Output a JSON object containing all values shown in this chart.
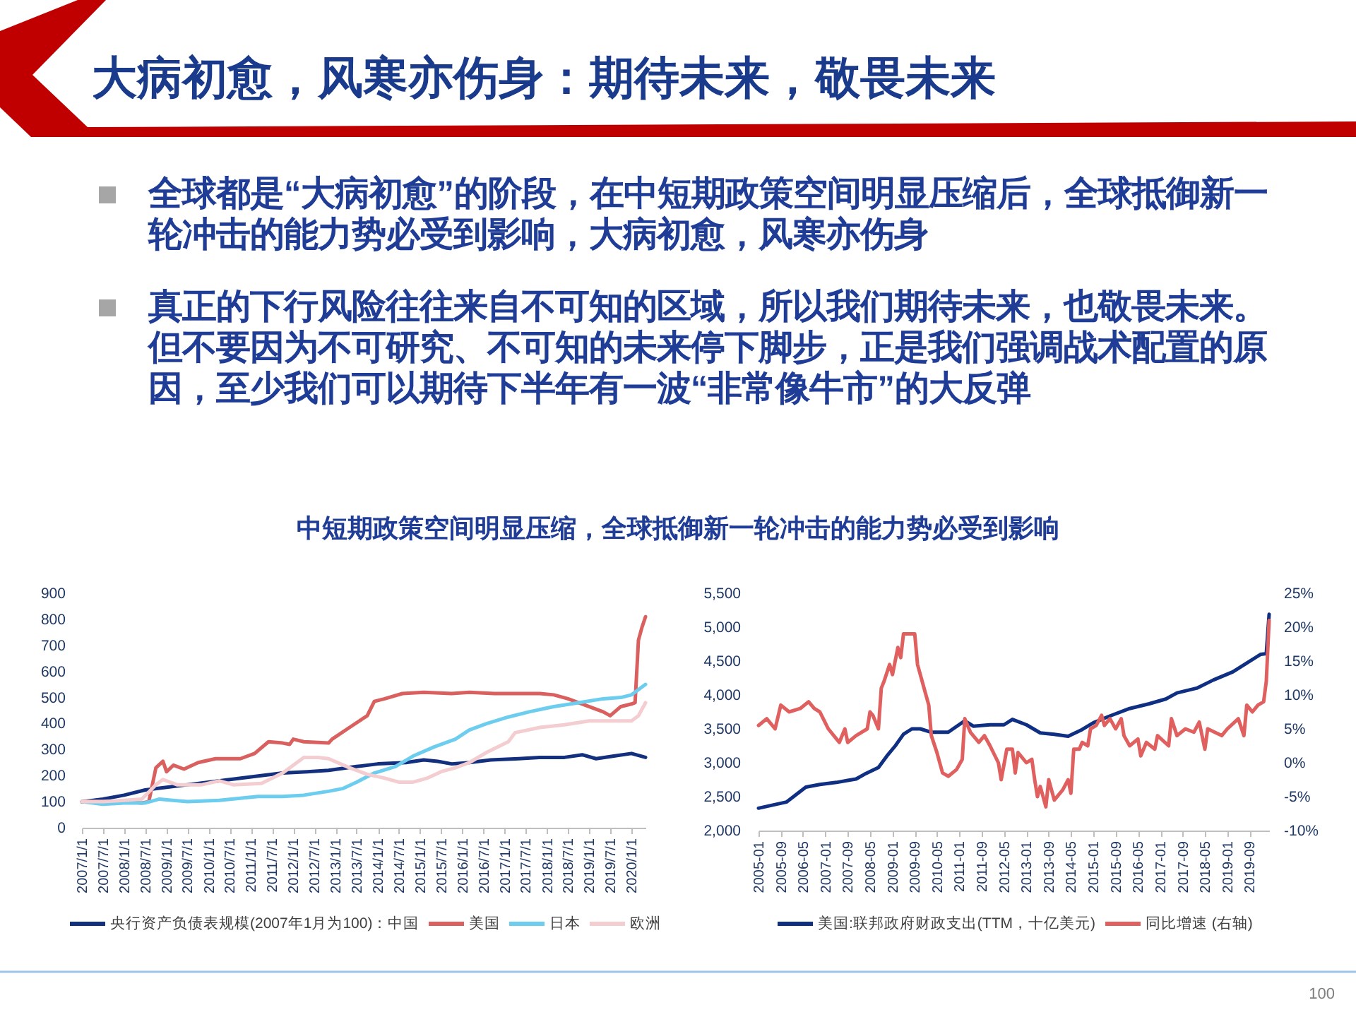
{
  "chart_data": [
    {
      "type": "other",
      "title": "大病初愈，风寒亦伤身：期待未来，敬畏未来",
      "annotations": [
        "全球都是“大病初愈”的阶段，在中短期政策空间明显压缩后，全球抵御新一轮冲击的能力势必受到影响，大病初愈，风寒亦伤身",
        "真正的下行风险往往来自不可知的区域，所以我们期待未来，也敬畏未来。但不要因为不可研究、不可知的未来停下脚步，正是我们强调战术配置的原因，至少我们可以期待下半年有一波“非常像牛市”的大反弹",
        "中短期政策空间明显压缩，全球抵御新一轮冲击的能力势必受到影响"
      ]
    },
    {
      "type": "line",
      "legend": "bottom",
      "xlim": [
        "2007-01-01",
        "2020-05-01"
      ],
      "xticks": [
        {
          "value": "2007-01-01",
          "label": "2007/1/1"
        },
        {
          "value": "2007-07-01",
          "label": "2007/7/1"
        },
        {
          "value": "2008-01-01",
          "label": "2008/1/1"
        },
        {
          "value": "2008-07-01",
          "label": "2008/7/1"
        },
        {
          "value": "2009-01-01",
          "label": "2009/1/1"
        },
        {
          "value": "2009-07-01",
          "label": "2009/7/1"
        },
        {
          "value": "2010-01-01",
          "label": "2010/1/1"
        },
        {
          "value": "2010-07-01",
          "label": "2010/7/1"
        },
        {
          "value": "2011-01-01",
          "label": "2011/1/1"
        },
        {
          "value": "2011-07-01",
          "label": "2011/7/1"
        },
        {
          "value": "2012-01-01",
          "label": "2012/1/1"
        },
        {
          "value": "2012-07-01",
          "label": "2012/7/1"
        },
        {
          "value": "2013-01-01",
          "label": "2013/1/1"
        },
        {
          "value": "2013-07-01",
          "label": "2013/7/1"
        },
        {
          "value": "2014-01-01",
          "label": "2014/1/1"
        },
        {
          "value": "2014-07-01",
          "label": "2014/7/1"
        },
        {
          "value": "2015-01-01",
          "label": "2015/1/1"
        },
        {
          "value": "2015-07-01",
          "label": "2015/7/1"
        },
        {
          "value": "2016-01-01",
          "label": "2016/1/1"
        },
        {
          "value": "2016-07-01",
          "label": "2016/7/1"
        },
        {
          "value": "2017-01-01",
          "label": "2017/1/1"
        },
        {
          "value": "2017-07-01",
          "label": "2017/7/1"
        },
        {
          "value": "2018-01-01",
          "label": "2018/1/1"
        },
        {
          "value": "2018-07-01",
          "label": "2018/7/1"
        },
        {
          "value": "2019-01-01",
          "label": "2019/1/1"
        },
        {
          "value": "2019-07-01",
          "label": "2019/7/1"
        },
        {
          "value": "2020-01-01",
          "label": "2020/1/1"
        }
      ],
      "ylim": [
        0,
        900
      ],
      "yticks": [
        0,
        100,
        200,
        300,
        400,
        500,
        600,
        700,
        800,
        900
      ],
      "series": [
        {
          "name": "央行资产负债表规模(2007年1月为100)：中国",
          "color": "#13307f",
          "x": [
            "2007-01",
            "2007-07",
            "2008-01",
            "2008-07",
            "2009-07",
            "2010-07",
            "2011-01",
            "2011-10",
            "2012-05",
            "2012-11",
            "2013-07",
            "2014-01",
            "2014-09",
            "2015-02",
            "2015-06",
            "2015-10",
            "2016-03",
            "2016-09",
            "2017-05",
            "2017-11",
            "2018-06",
            "2018-11",
            "2019-03",
            "2019-08",
            "2020-01",
            "2020-05"
          ],
          "values": [
            100,
            110,
            125,
            145,
            165,
            185,
            195,
            210,
            215,
            220,
            235,
            245,
            250,
            260,
            255,
            245,
            250,
            260,
            265,
            270,
            270,
            280,
            265,
            275,
            285,
            270
          ]
        },
        {
          "name": "美国",
          "color": "#d9605e",
          "x": [
            "2007-01",
            "2007-07",
            "2008-01",
            "2008-06",
            "2008-08",
            "2008-10",
            "2008-12",
            "2009-01",
            "2009-03",
            "2009-06",
            "2009-10",
            "2010-03",
            "2010-10",
            "2011-02",
            "2011-06",
            "2011-10",
            "2011-12",
            "2012-01",
            "2012-04",
            "2012-11",
            "2012-12",
            "2013-05",
            "2013-10",
            "2013-12",
            "2014-03",
            "2014-08",
            "2015-02",
            "2015-10",
            "2016-03",
            "2016-10",
            "2017-04",
            "2017-11",
            "2018-03",
            "2018-07",
            "2018-11",
            "2019-05",
            "2019-07",
            "2019-10",
            "2020-01",
            "2020-02",
            "2020-03",
            "2020-04",
            "2020-05"
          ],
          "values": [
            100,
            100,
            100,
            95,
            100,
            230,
            255,
            215,
            240,
            225,
            250,
            265,
            265,
            285,
            330,
            325,
            320,
            340,
            330,
            325,
            340,
            385,
            430,
            485,
            495,
            515,
            520,
            515,
            520,
            515,
            515,
            515,
            510,
            495,
            475,
            445,
            430,
            465,
            475,
            480,
            720,
            770,
            810
          ]
        },
        {
          "name": "日本",
          "color": "#6dcdee",
          "x": [
            "2007-01",
            "2007-07",
            "2008-01",
            "2008-07",
            "2008-11",
            "2009-07",
            "2010-04",
            "2011-03",
            "2011-10",
            "2012-04",
            "2012-11",
            "2013-03",
            "2013-07",
            "2013-12",
            "2014-06",
            "2014-11",
            "2015-05",
            "2015-11",
            "2016-03",
            "2016-08",
            "2017-02",
            "2017-08",
            "2018-03",
            "2018-10",
            "2019-05",
            "2019-10",
            "2020-01",
            "2020-05"
          ],
          "values": [
            100,
            90,
            95,
            95,
            110,
            100,
            105,
            120,
            120,
            125,
            140,
            150,
            175,
            210,
            235,
            275,
            310,
            340,
            375,
            400,
            425,
            445,
            465,
            480,
            495,
            500,
            510,
            550
          ]
        },
        {
          "name": "欧洲",
          "color": "#f4cdd0",
          "x": [
            "2007-01",
            "2007-07",
            "2008-01",
            "2008-06",
            "2008-10",
            "2008-12",
            "2009-04",
            "2009-11",
            "2010-04",
            "2010-08",
            "2011-04",
            "2011-10",
            "2012-01",
            "2012-04",
            "2012-08",
            "2012-11",
            "2013-05",
            "2013-10",
            "2014-03",
            "2014-07",
            "2014-11",
            "2015-03",
            "2015-07",
            "2015-11",
            "2016-03",
            "2016-08",
            "2017-02",
            "2017-04",
            "2017-11",
            "2018-06",
            "2019-01",
            "2019-07",
            "2020-01",
            "2020-03",
            "2020-05"
          ],
          "values": [
            100,
            100,
            105,
            110,
            165,
            185,
            165,
            165,
            180,
            165,
            170,
            210,
            240,
            270,
            270,
            265,
            230,
            205,
            190,
            175,
            175,
            190,
            215,
            230,
            250,
            290,
            330,
            365,
            385,
            395,
            410,
            410,
            410,
            430,
            480
          ]
        }
      ]
    },
    {
      "type": "line",
      "legend": "bottom",
      "annotations": [
        "100"
      ],
      "xlim": [
        "2005-01",
        "2020-04"
      ],
      "xticks": [
        "2005-01",
        "2005-09",
        "2006-05",
        "2007-01",
        "2007-09",
        "2008-05",
        "2009-01",
        "2009-09",
        "2010-05",
        "2011-01",
        "2011-09",
        "2012-05",
        "2013-01",
        "2013-09",
        "2014-05",
        "2015-01",
        "2015-09",
        "2016-05",
        "2017-01",
        "2017-09",
        "2018-05",
        "2019-01",
        "2019-09"
      ],
      "ylim": [
        2000,
        5500
      ],
      "yticks": [
        {
          "value": 2000,
          "label": "2,000"
        },
        {
          "value": 2500,
          "label": "2,500"
        },
        {
          "value": 3000,
          "label": "3,000"
        },
        {
          "value": 3500,
          "label": "3,500"
        },
        {
          "value": 4000,
          "label": "4,000"
        },
        {
          "value": 4500,
          "label": "4,500"
        },
        {
          "value": 5000,
          "label": "5,000"
        },
        {
          "value": 5500,
          "label": "5,500"
        }
      ],
      "y2lim": [
        -10,
        25
      ],
      "y2ticks": [
        {
          "value": -10,
          "label": "-10%"
        },
        {
          "value": -5,
          "label": "-5%"
        },
        {
          "value": 0,
          "label": "0%"
        },
        {
          "value": 5,
          "label": "5%"
        },
        {
          "value": 10,
          "label": "10%"
        },
        {
          "value": 15,
          "label": "15%"
        },
        {
          "value": 20,
          "label": "20%"
        },
        {
          "value": 25,
          "label": "25%"
        }
      ],
      "series": [
        {
          "name": "美国:联邦政府财政支出(TTM，十亿美元)",
          "color": "#0f2f82",
          "x": [
            "2005-01",
            "2005-11",
            "2006-06",
            "2006-11",
            "2007-05",
            "2007-09",
            "2007-12",
            "2008-03",
            "2008-08",
            "2008-11",
            "2009-02",
            "2009-05",
            "2009-08",
            "2009-11",
            "2010-03",
            "2010-09",
            "2011-03",
            "2011-06",
            "2011-12",
            "2012-05",
            "2012-08",
            "2013-01",
            "2013-06",
            "2013-11",
            "2014-04",
            "2014-09",
            "2015-01",
            "2015-07",
            "2016-02",
            "2016-09",
            "2017-03",
            "2017-07",
            "2018-02",
            "2018-08",
            "2019-03",
            "2019-08",
            "2020-01",
            "2020-03",
            "2020-04"
          ],
          "values": [
            2330,
            2420,
            2640,
            2680,
            2710,
            2740,
            2760,
            2830,
            2930,
            3100,
            3250,
            3420,
            3500,
            3500,
            3450,
            3450,
            3620,
            3540,
            3560,
            3560,
            3640,
            3560,
            3440,
            3420,
            3390,
            3490,
            3590,
            3690,
            3800,
            3870,
            3940,
            4030,
            4100,
            4220,
            4340,
            4470,
            4600,
            4610,
            5190
          ]
        },
        {
          "name": "同比增速 (右轴)",
          "color": "#e0605f",
          "axis": "y2",
          "x": [
            "2005-01",
            "2005-04",
            "2005-07",
            "2005-09",
            "2005-12",
            "2006-04",
            "2006-07",
            "2006-09",
            "2006-11",
            "2007-02",
            "2007-06",
            "2007-08",
            "2007-09",
            "2007-12",
            "2008-04",
            "2008-05",
            "2008-06",
            "2008-08",
            "2008-09",
            "2008-10",
            "2008-12",
            "2009-01",
            "2009-03",
            "2009-04",
            "2009-05",
            "2009-09",
            "2009-10",
            "2010-01",
            "2010-02",
            "2010-03",
            "2010-05",
            "2010-07",
            "2010-09",
            "2010-12",
            "2011-02",
            "2011-03",
            "2011-05",
            "2011-08",
            "2011-10",
            "2011-12",
            "2012-03",
            "2012-04",
            "2012-06",
            "2012-08",
            "2012-09",
            "2012-10",
            "2013-01",
            "2013-03",
            "2013-04",
            "2013-05",
            "2013-06",
            "2013-08",
            "2013-09",
            "2013-11",
            "2014-02",
            "2014-04",
            "2014-05",
            "2014-06",
            "2014-08",
            "2014-09",
            "2014-11",
            "2014-12",
            "2015-02",
            "2015-04",
            "2015-05",
            "2015-07",
            "2015-09",
            "2015-11",
            "2015-12",
            "2016-02",
            "2016-05",
            "2016-06",
            "2016-08",
            "2016-11",
            "2016-12",
            "2017-04",
            "2017-05",
            "2017-07",
            "2017-10",
            "2018-01",
            "2018-03",
            "2018-05",
            "2018-06",
            "2018-11",
            "2019-01",
            "2019-05",
            "2019-07",
            "2019-08",
            "2019-10",
            "2019-12",
            "2020-02",
            "2020-03",
            "2020-04"
          ],
          "values": [
            5.5,
            6.5,
            5,
            8.5,
            7.5,
            8,
            9,
            8,
            7.5,
            5,
            3,
            5,
            3,
            4,
            5,
            7.5,
            7,
            5,
            11,
            12,
            14.5,
            13,
            17,
            15.5,
            19,
            19,
            14.5,
            10,
            8.5,
            4,
            1.5,
            -1.5,
            -2,
            -1,
            0.5,
            6.5,
            4.5,
            3,
            4,
            2.5,
            0,
            -2.5,
            2,
            2,
            -1.5,
            1.5,
            0,
            0.5,
            -2.5,
            -5,
            -3.5,
            -6.5,
            -2.5,
            -5.5,
            -4,
            -2.5,
            -4.5,
            2,
            2,
            3,
            2.5,
            5,
            5.5,
            7,
            5.5,
            6.5,
            5,
            6.5,
            4,
            2.5,
            3.5,
            1,
            3,
            2,
            4,
            2.5,
            6.5,
            4,
            5,
            4.5,
            6,
            2,
            5,
            4,
            5,
            6.5,
            4,
            8.5,
            7.5,
            8.5,
            9,
            12,
            21
          ]
        }
      ]
    }
  ]
}
